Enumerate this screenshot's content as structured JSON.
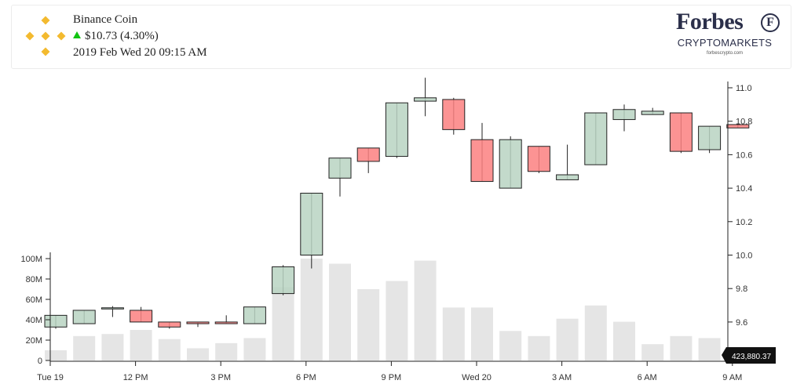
{
  "header": {
    "coin_name": "Binance Coin",
    "price_change": "$10.73 (4.30%)",
    "datetime": "2019 Feb Wed 20 09:15 AM",
    "logo_icon": "binance-diamond-icon",
    "logo_color": "#f3ba2f",
    "change_color": "#12c412"
  },
  "brand": {
    "name": "Forbes",
    "badge": "F",
    "subtitle": "CRYPTOMARKETS",
    "url": "forbescrypto.com"
  },
  "chart_data": {
    "type": "candlestick",
    "x_tick_labels": [
      "Tue 19",
      "12 PM",
      "3 PM",
      "6 PM",
      "9 PM",
      "Wed 20",
      "3 AM",
      "6 AM",
      "9 AM"
    ],
    "price_axis": {
      "ticks": [
        9.6,
        9.8,
        10.0,
        10.2,
        10.4,
        10.6,
        10.8,
        11.0
      ],
      "range": [
        9.37,
        11.07
      ]
    },
    "volume_axis": {
      "ticks": [
        "0",
        "20M",
        "40M",
        "60M",
        "80M",
        "100M"
      ],
      "range": [
        0,
        100
      ]
    },
    "up_color": "#b9d4c2",
    "down_color": "#fb8080",
    "volume_color": "#e5e5e5",
    "last_volume_label": "423,880.37",
    "candles": [
      {
        "o": 9.57,
        "h": 9.64,
        "l": 9.56,
        "c": 9.64,
        "v": 10
      },
      {
        "o": 9.59,
        "h": 9.67,
        "l": 9.59,
        "c": 9.67,
        "v": 24
      },
      {
        "o": 9.685,
        "h": 9.695,
        "l": 9.63,
        "c": 9.685,
        "v": 26
      },
      {
        "o": 9.67,
        "h": 9.69,
        "l": 9.6,
        "c": 9.6,
        "v": 30
      },
      {
        "o": 9.6,
        "h": 9.6,
        "l": 9.56,
        "c": 9.57,
        "v": 21
      },
      {
        "o": 9.6,
        "h": 9.6,
        "l": 9.57,
        "c": 9.59,
        "v": 12
      },
      {
        "o": 9.6,
        "h": 9.64,
        "l": 9.59,
        "c": 9.59,
        "v": 17
      },
      {
        "o": 9.59,
        "h": 9.69,
        "l": 9.59,
        "c": 9.69,
        "v": 22
      },
      {
        "o": 9.77,
        "h": 9.94,
        "l": 9.76,
        "c": 9.93,
        "v": 72
      },
      {
        "o": 10.0,
        "h": 10.37,
        "l": 9.92,
        "c": 10.37,
        "v": 100
      },
      {
        "o": 10.46,
        "h": 10.58,
        "l": 10.35,
        "c": 10.58,
        "v": 95
      },
      {
        "o": 10.64,
        "h": 10.64,
        "l": 10.49,
        "c": 10.56,
        "v": 70
      },
      {
        "o": 10.59,
        "h": 10.91,
        "l": 10.58,
        "c": 10.91,
        "v": 78
      },
      {
        "o": 10.92,
        "h": 11.06,
        "l": 10.83,
        "c": 10.94,
        "v": 98
      },
      {
        "o": 10.93,
        "h": 10.94,
        "l": 10.72,
        "c": 10.75,
        "v": 52
      },
      {
        "o": 10.69,
        "h": 10.79,
        "l": 10.44,
        "c": 10.44,
        "v": 52
      },
      {
        "o": 10.4,
        "h": 10.71,
        "l": 10.4,
        "c": 10.69,
        "v": 29
      },
      {
        "o": 10.65,
        "h": 10.65,
        "l": 10.49,
        "c": 10.5,
        "v": 24
      },
      {
        "o": 10.45,
        "h": 10.66,
        "l": 10.45,
        "c": 10.48,
        "v": 41
      },
      {
        "o": 10.54,
        "h": 10.85,
        "l": 10.54,
        "c": 10.85,
        "v": 54
      },
      {
        "o": 10.81,
        "h": 10.9,
        "l": 10.74,
        "c": 10.87,
        "v": 38
      },
      {
        "o": 10.84,
        "h": 10.88,
        "l": 10.84,
        "c": 10.86,
        "v": 16
      },
      {
        "o": 10.85,
        "h": 10.85,
        "l": 10.61,
        "c": 10.62,
        "v": 24
      },
      {
        "o": 10.63,
        "h": 10.77,
        "l": 10.61,
        "c": 10.77,
        "v": 22
      },
      {
        "o": 10.78,
        "h": 10.78,
        "l": 10.76,
        "c": 10.76,
        "v": 0.4
      }
    ]
  }
}
